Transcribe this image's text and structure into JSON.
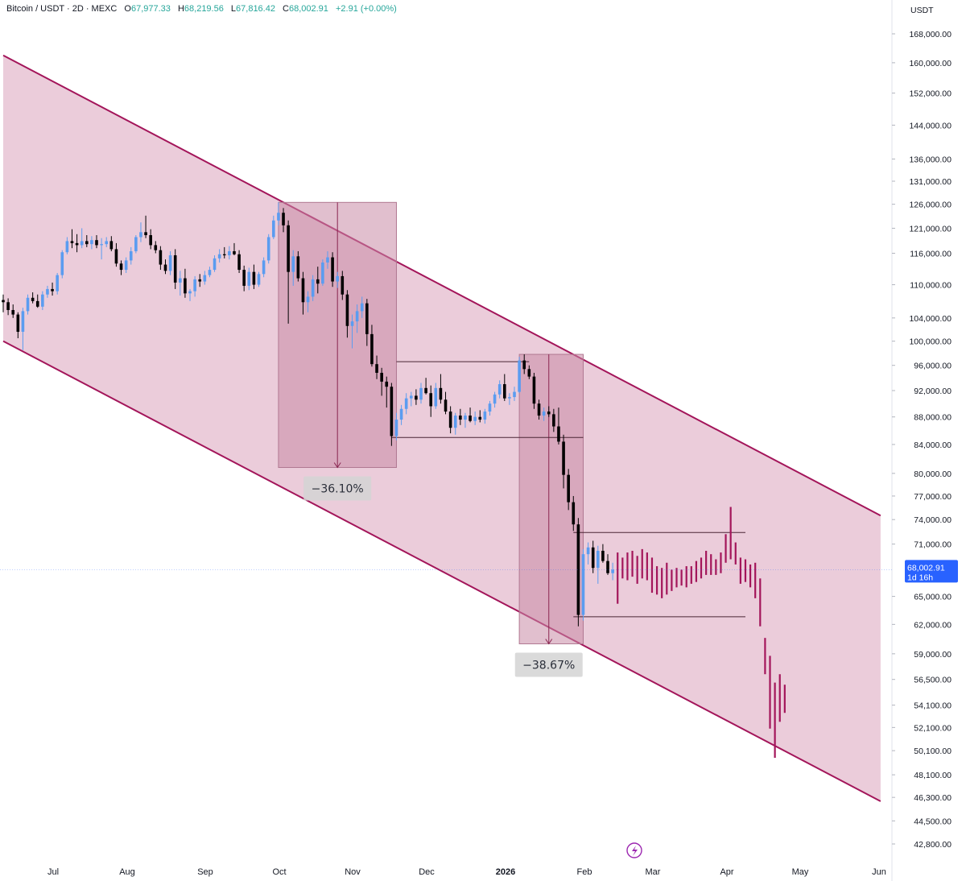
{
  "legend": {
    "symbol": "Bitcoin / USDT · 2D · MEXC",
    "o_key": "O",
    "o_val": "67,977.33",
    "h_key": "H",
    "h_val": "68,219.56",
    "l_key": "L",
    "l_val": "67,816.42",
    "c_key": "C",
    "c_val": "68,002.91",
    "chg": "+2.91 (+0.00%)"
  },
  "colors": {
    "up": "#5b9cf0",
    "down": "#000000",
    "projection": "#a3155a",
    "channel_fill": "#e8c3d3",
    "channel_line": "#a3155a",
    "drop_box": "#c98aa6",
    "price_tag": "#2962ff"
  },
  "chart_data": {
    "type": "candlestick",
    "currency": "USDT",
    "y_scale": "log",
    "ylim": [
      41500,
      172000
    ],
    "y_ticks": [
      "168,000.00",
      "160,000.00",
      "152,000.00",
      "144,000.00",
      "136,000.00",
      "131,000.00",
      "126,000.00",
      "121,000.00",
      "116,000.00",
      "110,000.00",
      "104,000.00",
      "100,000.00",
      "96,000.00",
      "92,000.00",
      "88,000.00",
      "84,000.00",
      "80,000.00",
      "77,000.00",
      "74,000.00",
      "71,000.00",
      "65,000.00",
      "62,000.00",
      "59,000.00",
      "56,500.00",
      "54,100.00",
      "52,100.00",
      "50,100.00",
      "48,100.00",
      "46,300.00",
      "44,500.00",
      "42,800.00"
    ],
    "x_ticks": [
      "Jul",
      "Aug",
      "Sep",
      "Oct",
      "Nov",
      "Dec",
      "2026",
      "Feb",
      "Mar",
      "Apr",
      "May",
      "Jun"
    ],
    "xlim": [
      "2025-06-15",
      "2026-06-09"
    ],
    "current_price": {
      "value": 68002.91,
      "label": "68,002.91",
      "countdown": "1d 16h"
    },
    "candles": [
      [
        "2025-06-15",
        107200,
        108200,
        105000,
        106800
      ],
      [
        "2025-06-17",
        106800,
        107500,
        104500,
        105400
      ],
      [
        "2025-06-19",
        105400,
        106400,
        104000,
        104600
      ],
      [
        "2025-06-21",
        104600,
        105000,
        100500,
        101600
      ],
      [
        "2025-06-23",
        101600,
        105800,
        98500,
        105200
      ],
      [
        "2025-06-25",
        105200,
        108200,
        104600,
        107600
      ],
      [
        "2025-06-27",
        107600,
        108600,
        106600,
        107000
      ],
      [
        "2025-06-29",
        107000,
        108200,
        105800,
        106000
      ],
      [
        "2025-07-01",
        106000,
        108800,
        105400,
        108200
      ],
      [
        "2025-07-03",
        108200,
        109800,
        107600,
        109200
      ],
      [
        "2025-07-05",
        109200,
        110400,
        108000,
        108800
      ],
      [
        "2025-07-07",
        108800,
        112200,
        108200,
        111800
      ],
      [
        "2025-07-09",
        111800,
        116600,
        111200,
        116200
      ],
      [
        "2025-07-11",
        116200,
        119200,
        115800,
        118400
      ],
      [
        "2025-07-13",
        118400,
        120800,
        117000,
        118000
      ],
      [
        "2025-07-15",
        118000,
        119800,
        116200,
        117600
      ],
      [
        "2025-07-17",
        117600,
        121000,
        117000,
        118400
      ],
      [
        "2025-07-19",
        118400,
        119600,
        117200,
        117800
      ],
      [
        "2025-07-21",
        117800,
        119400,
        116800,
        118600
      ],
      [
        "2025-07-23",
        118600,
        119600,
        117000,
        117600
      ],
      [
        "2025-07-25",
        117600,
        119000,
        114800,
        117800
      ],
      [
        "2025-07-27",
        117800,
        119200,
        117200,
        118400
      ],
      [
        "2025-07-29",
        118400,
        119400,
        116400,
        116800
      ],
      [
        "2025-07-31",
        116800,
        118000,
        113400,
        114000
      ],
      [
        "2025-08-02",
        114000,
        114600,
        111800,
        112800
      ],
      [
        "2025-08-04",
        112800,
        115200,
        112200,
        114600
      ],
      [
        "2025-08-06",
        114600,
        117200,
        113800,
        116400
      ],
      [
        "2025-08-08",
        116400,
        119600,
        116000,
        119200
      ],
      [
        "2025-08-10",
        119200,
        122200,
        118200,
        120200
      ],
      [
        "2025-08-12",
        120200,
        123600,
        119000,
        119600
      ],
      [
        "2025-08-14",
        119600,
        120800,
        116800,
        117600
      ],
      [
        "2025-08-16",
        117600,
        118400,
        116000,
        116600
      ],
      [
        "2025-08-18",
        116600,
        117400,
        112800,
        113800
      ],
      [
        "2025-08-20",
        113800,
        114800,
        112000,
        112600
      ],
      [
        "2025-08-22",
        112600,
        116400,
        111800,
        115600
      ],
      [
        "2025-08-24",
        115600,
        116800,
        109200,
        110400
      ],
      [
        "2025-08-26",
        110400,
        112600,
        108000,
        111200
      ],
      [
        "2025-08-28",
        111200,
        113000,
        107600,
        108400
      ],
      [
        "2025-08-30",
        108400,
        109200,
        107000,
        108800
      ],
      [
        "2025-09-01",
        108800,
        111600,
        107800,
        111000
      ],
      [
        "2025-09-03",
        111000,
        112000,
        109600,
        110600
      ],
      [
        "2025-09-05",
        110600,
        112600,
        110000,
        111800
      ],
      [
        "2025-09-07",
        111800,
        113400,
        111400,
        112800
      ],
      [
        "2025-09-09",
        112800,
        115600,
        112400,
        115000
      ],
      [
        "2025-09-11",
        115000,
        116800,
        114200,
        115800
      ],
      [
        "2025-09-13",
        115800,
        117200,
        115000,
        115600
      ],
      [
        "2025-09-15",
        115600,
        117400,
        114800,
        116400
      ],
      [
        "2025-09-17",
        116400,
        118000,
        115600,
        115800
      ],
      [
        "2025-09-19",
        115800,
        116600,
        112200,
        112800
      ],
      [
        "2025-09-21",
        112800,
        113600,
        108800,
        109800
      ],
      [
        "2025-09-23",
        109800,
        113200,
        109000,
        112400
      ],
      [
        "2025-09-25",
        112400,
        113800,
        109200,
        110000
      ],
      [
        "2025-09-27",
        110000,
        112400,
        109600,
        112000
      ],
      [
        "2025-09-29",
        112000,
        115200,
        111400,
        114600
      ],
      [
        "2025-10-01",
        114600,
        119800,
        114000,
        119200
      ],
      [
        "2025-10-03",
        119200,
        123600,
        118800,
        122600
      ],
      [
        "2025-10-05",
        122600,
        126400,
        121600,
        124200
      ],
      [
        "2025-10-07",
        124200,
        125200,
        120200,
        121600
      ],
      [
        "2025-10-09",
        121600,
        122600,
        103000,
        112400
      ],
      [
        "2025-10-11",
        112400,
        116600,
        109800,
        115400
      ],
      [
        "2025-10-13",
        115400,
        116400,
        110600,
        111200
      ],
      [
        "2025-10-15",
        111200,
        112400,
        104600,
        106800
      ],
      [
        "2025-10-17",
        106800,
        108800,
        105000,
        107800
      ],
      [
        "2025-10-19",
        107800,
        111800,
        107000,
        111000
      ],
      [
        "2025-10-21",
        111000,
        113400,
        108400,
        110200
      ],
      [
        "2025-10-23",
        110200,
        114800,
        109800,
        114200
      ],
      [
        "2025-10-25",
        114200,
        116400,
        113000,
        115200
      ],
      [
        "2025-10-27",
        115200,
        116200,
        109600,
        110600
      ],
      [
        "2025-10-29",
        110600,
        112400,
        109400,
        111600
      ],
      [
        "2025-10-31",
        111600,
        112600,
        107200,
        108200
      ],
      [
        "2025-11-02",
        108200,
        109000,
        100600,
        102600
      ],
      [
        "2025-11-04",
        102600,
        104600,
        98800,
        103400
      ],
      [
        "2025-11-06",
        103400,
        106400,
        101400,
        105200
      ],
      [
        "2025-11-08",
        105200,
        107800,
        104000,
        106600
      ],
      [
        "2025-11-10",
        106600,
        107400,
        99200,
        101200
      ],
      [
        "2025-11-12",
        101200,
        102800,
        95800,
        96200
      ],
      [
        "2025-11-14",
        96200,
        97600,
        93800,
        94800
      ],
      [
        "2025-11-16",
        94800,
        95600,
        91200,
        93400
      ],
      [
        "2025-11-18",
        93400,
        94200,
        89400,
        92600
      ],
      [
        "2025-11-20",
        92600,
        93200,
        83800,
        85200
      ],
      [
        "2025-11-22",
        85200,
        88600,
        84600,
        87600
      ],
      [
        "2025-11-24",
        87600,
        89800,
        86800,
        89200
      ],
      [
        "2025-11-26",
        89200,
        91600,
        88400,
        90800
      ],
      [
        "2025-11-28",
        90800,
        91800,
        89600,
        91200
      ],
      [
        "2025-11-30",
        91200,
        92200,
        89800,
        90600
      ],
      [
        "2025-12-02",
        90600,
        93200,
        90000,
        92400
      ],
      [
        "2025-12-04",
        92400,
        94000,
        91400,
        91600
      ],
      [
        "2025-12-06",
        91600,
        92800,
        88000,
        89600
      ],
      [
        "2025-12-08",
        89600,
        93200,
        89200,
        92400
      ],
      [
        "2025-12-10",
        92400,
        94600,
        90000,
        90600
      ],
      [
        "2025-12-12",
        90600,
        91800,
        88400,
        88800
      ],
      [
        "2025-12-14",
        88800,
        89600,
        85600,
        86400
      ],
      [
        "2025-12-16",
        86400,
        88600,
        85400,
        88200
      ],
      [
        "2025-12-18",
        88200,
        89200,
        86800,
        87600
      ],
      [
        "2025-12-20",
        87600,
        88600,
        86400,
        88200
      ],
      [
        "2025-12-22",
        88200,
        89400,
        87200,
        87400
      ],
      [
        "2025-12-24",
        87400,
        88800,
        86800,
        88000
      ],
      [
        "2025-12-26",
        88000,
        89000,
        87200,
        87600
      ],
      [
        "2025-12-28",
        87600,
        89200,
        87000,
        88800
      ],
      [
        "2025-12-30",
        88800,
        90400,
        88200,
        90000
      ],
      [
        "2026-01-01",
        90000,
        91800,
        89400,
        91400
      ],
      [
        "2026-01-03",
        91400,
        93600,
        90800,
        93000
      ],
      [
        "2026-01-05",
        93000,
        94600,
        90400,
        90800
      ],
      [
        "2026-01-07",
        90800,
        91600,
        89800,
        91000
      ],
      [
        "2026-01-09",
        91000,
        92600,
        90400,
        91800
      ],
      [
        "2026-01-11",
        91800,
        97400,
        91600,
        96800
      ],
      [
        "2026-01-13",
        96800,
        97800,
        94600,
        95400
      ],
      [
        "2026-01-15",
        95400,
        96000,
        93800,
        94200
      ],
      [
        "2026-01-17",
        94200,
        94800,
        89200,
        90000
      ],
      [
        "2026-01-19",
        90000,
        90600,
        87600,
        88200
      ],
      [
        "2026-01-21",
        88200,
        89400,
        87400,
        88800
      ],
      [
        "2026-01-23",
        88800,
        89600,
        88000,
        88400
      ],
      [
        "2026-01-25",
        88400,
        89200,
        85800,
        86600
      ],
      [
        "2026-01-27",
        86600,
        89400,
        84000,
        84400
      ],
      [
        "2026-01-29",
        84400,
        85400,
        78000,
        79800
      ],
      [
        "2026-01-31",
        79800,
        80600,
        75200,
        76200
      ],
      [
        "2026-02-02",
        76200,
        77000,
        72600,
        73400
      ],
      [
        "2026-02-04",
        73400,
        74200,
        61800,
        63000
      ],
      [
        "2026-02-06",
        63000,
        70400,
        62400,
        69800
      ],
      [
        "2026-02-08",
        69800,
        71200,
        68600,
        70600
      ],
      [
        "2026-02-10",
        70600,
        71400,
        67600,
        68200
      ],
      [
        "2026-02-12",
        68200,
        70800,
        66400,
        70200
      ],
      [
        "2026-02-14",
        70200,
        71000,
        68800,
        69000
      ],
      [
        "2026-02-16",
        69000,
        69800,
        67400,
        67600
      ],
      [
        "2026-02-18",
        67600,
        68800,
        66800,
        68000
      ]
    ],
    "projection_bars": [
      [
        "2026-02-20",
        70000,
        64200
      ],
      [
        "2026-02-22",
        69400,
        67000
      ],
      [
        "2026-02-24",
        70000,
        66800
      ],
      [
        "2026-02-26",
        70200,
        67200
      ],
      [
        "2026-02-28",
        69600,
        66400
      ],
      [
        "2026-03-02",
        70400,
        67000
      ],
      [
        "2026-03-04",
        70000,
        66800
      ],
      [
        "2026-03-06",
        69400,
        65400
      ],
      [
        "2026-03-08",
        68400,
        65200
      ],
      [
        "2026-03-10",
        68200,
        64800
      ],
      [
        "2026-03-12",
        68800,
        65200
      ],
      [
        "2026-03-14",
        68000,
        65600
      ],
      [
        "2026-03-16",
        68200,
        66000
      ],
      [
        "2026-03-18",
        68000,
        66200
      ],
      [
        "2026-03-20",
        68400,
        66000
      ],
      [
        "2026-03-22",
        68400,
        66400
      ],
      [
        "2026-03-24",
        69000,
        66600
      ],
      [
        "2026-03-26",
        69400,
        67000
      ],
      [
        "2026-03-28",
        70200,
        67400
      ],
      [
        "2026-03-30",
        69800,
        67400
      ],
      [
        "2026-04-01",
        69200,
        67400
      ],
      [
        "2026-04-03",
        70000,
        67600
      ],
      [
        "2026-04-05",
        72200,
        68800
      ],
      [
        "2026-04-07",
        75600,
        69200
      ],
      [
        "2026-04-09",
        71200,
        68600
      ],
      [
        "2026-04-11",
        69400,
        66400
      ],
      [
        "2026-04-13",
        69200,
        66600
      ],
      [
        "2026-04-15",
        68600,
        66000
      ],
      [
        "2026-04-17",
        68800,
        64800
      ],
      [
        "2026-04-19",
        67000,
        61800
      ],
      [
        "2026-04-21",
        60600,
        57000
      ],
      [
        "2026-04-23",
        58800,
        52000
      ],
      [
        "2026-04-25",
        56200,
        49500
      ],
      [
        "2026-04-27",
        57000,
        52600
      ],
      [
        "2026-04-29",
        56000,
        53400
      ]
    ],
    "channel": {
      "upper": [
        [
          "2025-06-15",
          162000
        ],
        [
          "2026-06-07",
          74500
        ]
      ],
      "lower": [
        [
          "2025-06-15",
          100000
        ],
        [
          "2026-06-07",
          46000
        ]
      ]
    },
    "drop_boxes": [
      {
        "from": "2025-10-05",
        "to": "2025-11-22",
        "high": 126400,
        "low": 80800,
        "arrow_date": "2025-10-29",
        "label": "−36.10%"
      },
      {
        "from": "2026-01-11",
        "to": "2026-02-06",
        "high": 97800,
        "low": 60000,
        "arrow_date": "2026-01-23",
        "label": "−38.67%"
      }
    ],
    "levels": [
      {
        "from": "2025-11-22",
        "to": "2026-01-15",
        "value": 96600
      },
      {
        "from": "2025-11-20",
        "to": "2026-02-06",
        "value": 85000
      },
      {
        "from": "2026-02-02",
        "to": "2026-04-13",
        "value": 72400
      },
      {
        "from": "2026-02-02",
        "to": "2026-04-13",
        "value": 62800
      }
    ]
  }
}
